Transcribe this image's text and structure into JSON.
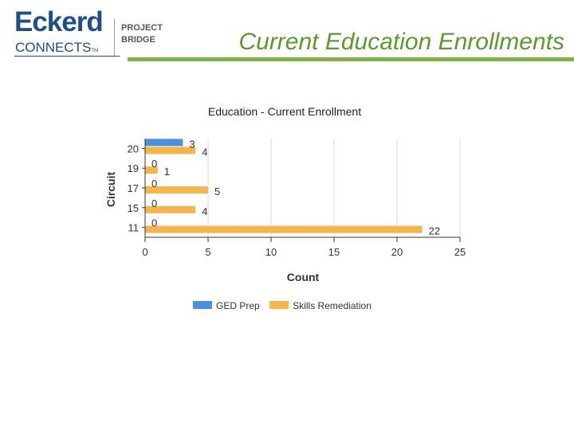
{
  "header": {
    "logo": {
      "brand_top": "Eckerd",
      "brand_bottom": "CONNECTS",
      "trademark": "TM",
      "project_line1": "PROJECT",
      "project_line2": "BRIDGE"
    },
    "slide_title": "Current Education Enrollments"
  },
  "colors": {
    "title": "#5a9a2c",
    "rule": "#7cb342",
    "brand": "#1f4e8c",
    "ged": "#4a8fe0",
    "skills": "#f5b54a"
  },
  "chart_data": {
    "type": "bar",
    "orientation": "horizontal",
    "title": "Education - Current Enrollment",
    "xlabel": "Count",
    "ylabel": "Circuit",
    "categories": [
      "20",
      "19",
      "17",
      "15",
      "11"
    ],
    "series": [
      {
        "name": "GED Prep",
        "color": "#4a8fe0",
        "values": [
          3,
          0,
          0,
          0,
          0
        ]
      },
      {
        "name": "Skills Remediation",
        "color": "#f5b54a",
        "values": [
          4,
          1,
          5,
          4,
          22
        ]
      }
    ],
    "xlim": [
      0,
      25
    ],
    "xticks": [
      "0",
      "5",
      "10",
      "15",
      "20",
      "25"
    ],
    "grid": "vertical",
    "legend": "bottom",
    "data_labels": true
  }
}
